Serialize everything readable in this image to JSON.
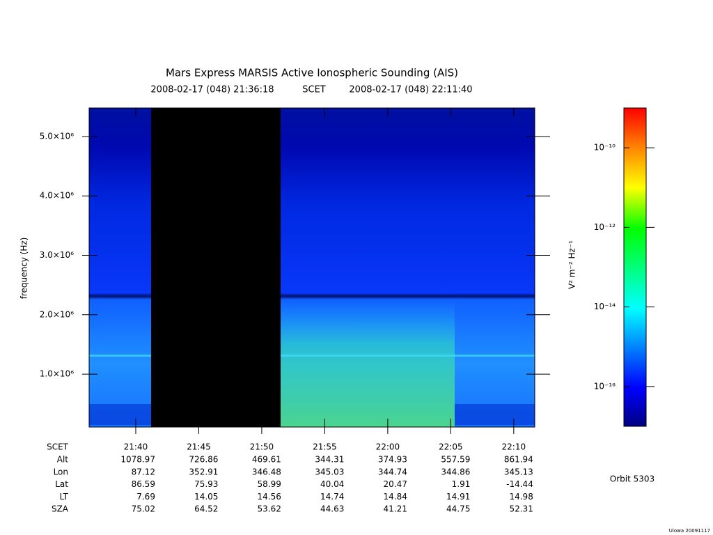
{
  "chart_data": {
    "type": "spectrogram",
    "title": "Mars Express MARSIS Active Ionospheric Sounding (AIS)",
    "start": "2008-02-17 (048) 21:36:18",
    "time_system": "SCET",
    "end": "2008-02-17 (048) 22:11:40",
    "ylabel": "frequency (Hz)",
    "xlim": [
      "21:36:18",
      "22:11:40"
    ],
    "xticks": [
      "21:40",
      "21:45",
      "21:50",
      "21:55",
      "22:00",
      "22:05",
      "22:10"
    ],
    "ylim": [
      110000,
      5480000
    ],
    "yticks": [
      {
        "value": 1000000,
        "label": "1.0×10⁶"
      },
      {
        "value": 2000000,
        "label": "2.0×10⁶"
      },
      {
        "value": 3000000,
        "label": "3.0×10⁶"
      },
      {
        "value": 4000000,
        "label": "4.0×10⁶"
      },
      {
        "value": 5000000,
        "label": "5.0×10⁶"
      }
    ],
    "colorbar": {
      "label": "V² m⁻² Hz⁻¹",
      "log": true,
      "lim": [
        1e-17,
        1e-09
      ],
      "ticks": [
        {
          "value": 1e-16,
          "label": "10⁻¹⁶"
        },
        {
          "value": 1e-14,
          "label": "10⁻¹⁴"
        },
        {
          "value": 1e-12,
          "label": "10⁻¹²"
        },
        {
          "value": 1e-10,
          "label": "10⁻¹⁰"
        }
      ]
    },
    "table": {
      "x_row_label": "SCET",
      "rows": [
        {
          "label": "Alt",
          "values": [
            1078.97,
            726.86,
            469.61,
            344.31,
            374.93,
            557.59,
            861.94
          ]
        },
        {
          "label": "Lon",
          "values": [
            87.12,
            352.91,
            346.48,
            345.03,
            344.74,
            344.86,
            345.13
          ]
        },
        {
          "label": "Lat",
          "values": [
            86.59,
            75.93,
            58.99,
            40.04,
            20.47,
            1.91,
            -14.44
          ]
        },
        {
          "label": "LT",
          "values": [
            7.69,
            14.05,
            14.56,
            14.74,
            14.84,
            14.91,
            14.98
          ]
        },
        {
          "label": "SZA",
          "values": [
            75.02,
            64.52,
            53.62,
            44.63,
            41.21,
            44.75,
            52.31
          ]
        }
      ]
    },
    "orbit": "Orbit 5303",
    "footer": "Uiowa 20091117"
  }
}
